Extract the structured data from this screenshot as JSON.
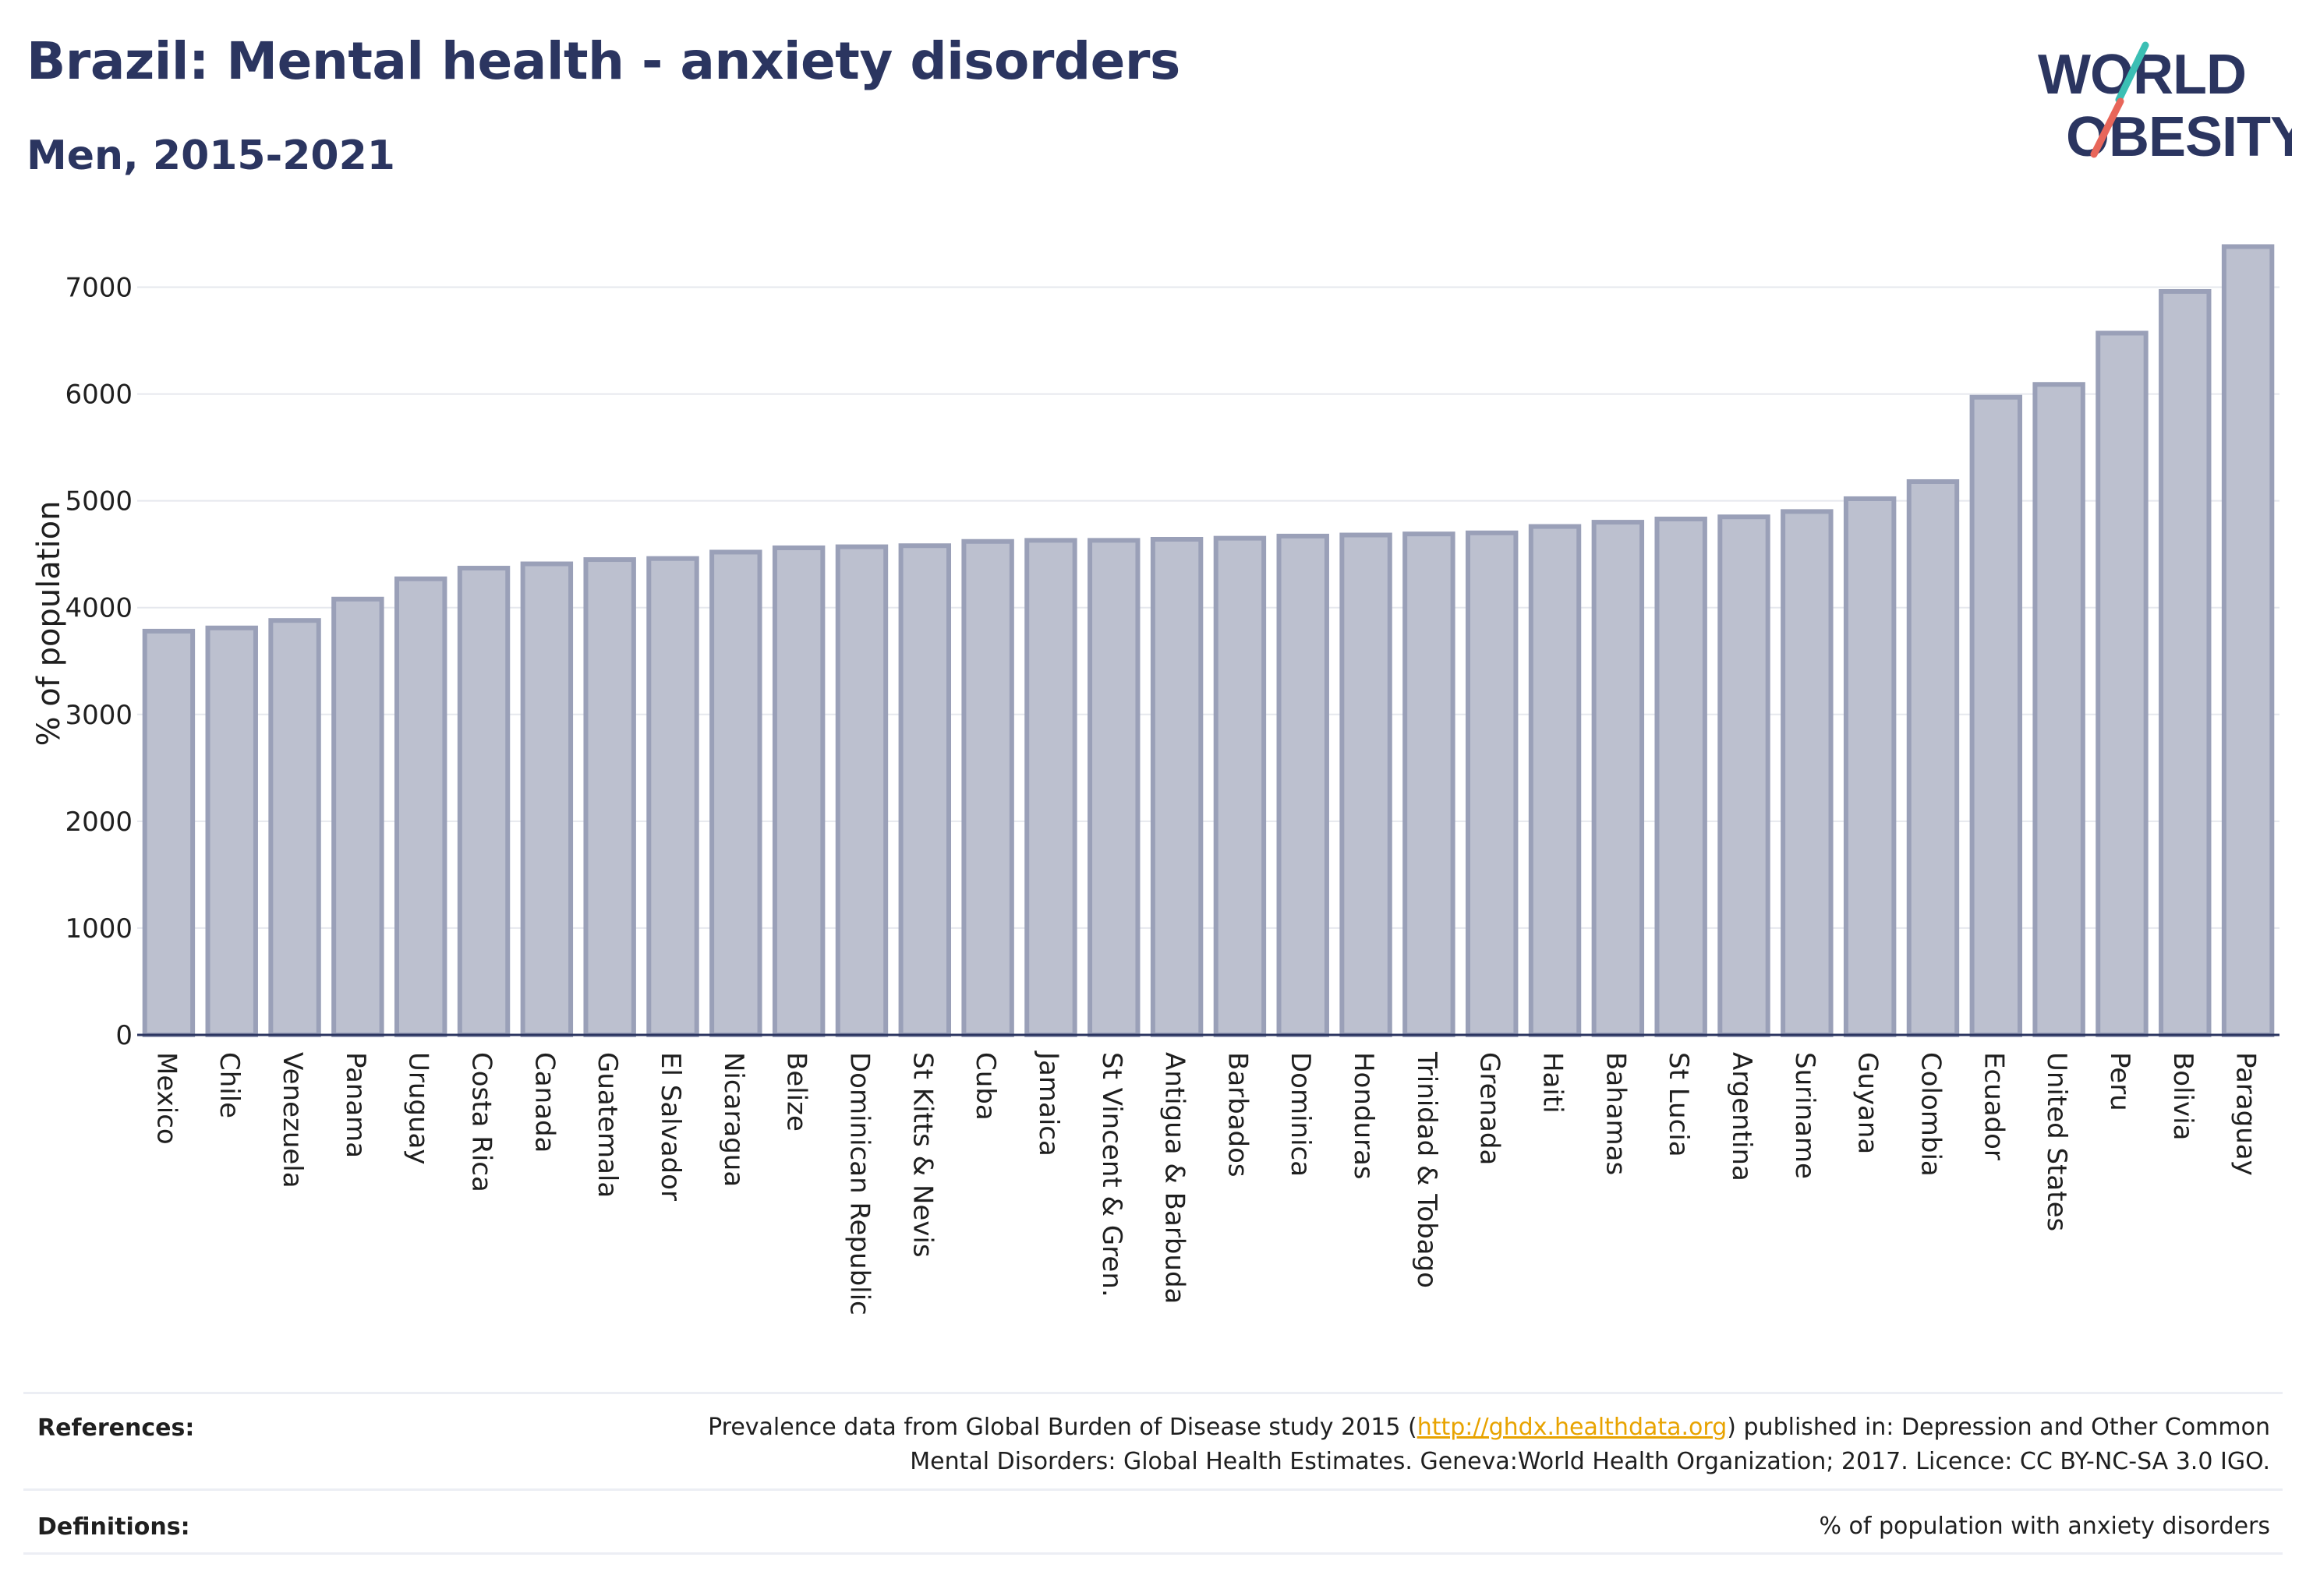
{
  "header": {
    "title": "Brazil: Mental health - anxiety disorders",
    "subtitle": "Men, 2015-2021"
  },
  "logo": {
    "line1": "WORLD",
    "line2": "OBESITY",
    "colors": {
      "text": "#2b3560",
      "slash_teal": "#3bbfb4",
      "slash_red": "#e8665a"
    }
  },
  "colors": {
    "bar_fill": "#bcc0cf",
    "bar_stroke": "#9aa0b8",
    "axis": "#2b3560",
    "grid": "#e6e8ee",
    "link": "#e8a300"
  },
  "chart_data": {
    "type": "bar",
    "title": "Brazil: Mental health - anxiety disorders",
    "subtitle": "Men, 2015-2021",
    "xlabel": "",
    "ylabel": "% of population",
    "ylim": [
      0,
      7500
    ],
    "yticks": [
      0,
      1000,
      2000,
      3000,
      4000,
      5000,
      6000,
      7000
    ],
    "grid": true,
    "categories": [
      "Mexico",
      "Chile",
      "Venezuela",
      "Panama",
      "Uruguay",
      "Costa Rica",
      "Canada",
      "Guatemala",
      "El Salvador",
      "Nicaragua",
      "Belize",
      "Dominican Republic",
      "St Kitts & Nevis",
      "Cuba",
      "Jamaica",
      "St Vincent & Gren.",
      "Antigua & Barbuda",
      "Barbados",
      "Dominica",
      "Honduras",
      "Trinidad & Tobago",
      "Grenada",
      "Haiti",
      "Bahamas",
      "St Lucia",
      "Argentina",
      "Suriname",
      "Guyana",
      "Colombia",
      "Ecuador",
      "United States",
      "Peru",
      "Bolivia",
      "Paraguay"
    ],
    "values": [
      3780,
      3810,
      3880,
      4080,
      4270,
      4370,
      4410,
      4450,
      4460,
      4520,
      4560,
      4570,
      4580,
      4620,
      4630,
      4630,
      4640,
      4650,
      4670,
      4680,
      4690,
      4700,
      4760,
      4800,
      4830,
      4850,
      4900,
      5020,
      5180,
      5970,
      6090,
      6570,
      6960,
      7380
    ]
  },
  "references": {
    "label": "References:",
    "text_before": "Prevalence data from Global Burden of Disease study 2015 (",
    "link": "http://ghdx.healthdata.org",
    "text_after": ") published in: Depression and Other Common",
    "line2": "Mental Disorders: Global Health Estimates. Geneva:World Health Organization; 2017. Licence: CC BY-NC-SA 3.0 IGO."
  },
  "definitions": {
    "label": "Definitions:",
    "text": "% of population with anxiety disorders"
  }
}
